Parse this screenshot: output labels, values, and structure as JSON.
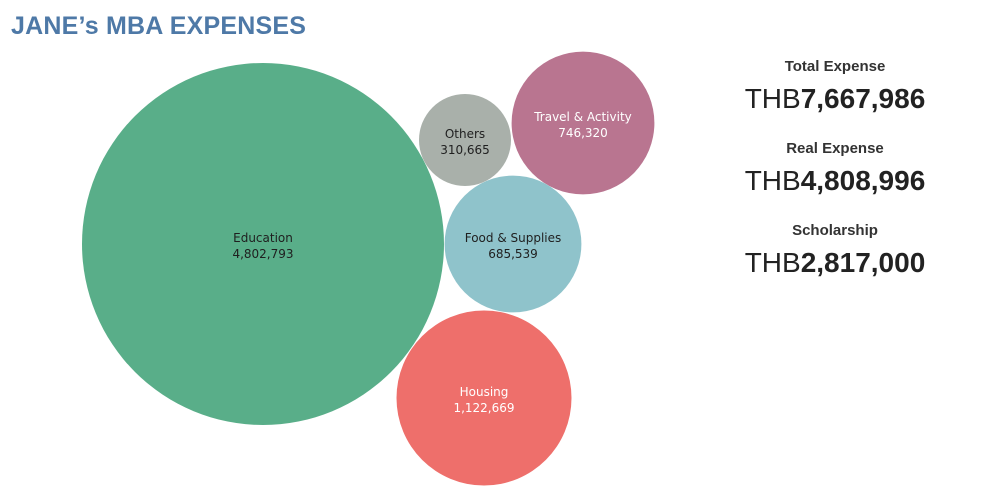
{
  "title": "JANE’s MBA EXPENSES",
  "chart_data": {
    "type": "bubble",
    "title": "JANE’s MBA EXPENSES",
    "bubbles": [
      {
        "label": "Education",
        "value": 4802793,
        "display": "4,802,793",
        "color": "#59ae89",
        "text_color": "#1f1f1f"
      },
      {
        "label": "Housing",
        "value": 1122669,
        "display": "1,122,669",
        "color": "#ee6f6b",
        "text_color": "#ffffff"
      },
      {
        "label": "Travel & Activity",
        "value": 746320,
        "display": "746,320",
        "color": "#b97590",
        "text_color": "#ffffff"
      },
      {
        "label": "Food & Supplies",
        "value": 685539,
        "display": "685,539",
        "color": "#8fc3cb",
        "text_color": "#1f1f1f"
      },
      {
        "label": "Others",
        "value": 310665,
        "display": "310,665",
        "color": "#a9b0aa",
        "text_color": "#1f1f1f"
      }
    ]
  },
  "kpis": [
    {
      "label": "Total Expense",
      "currency": "THB",
      "value": "7,667,986"
    },
    {
      "label": "Real Expense",
      "currency": "THB",
      "value": "4,808,996"
    },
    {
      "label": "Scholarship",
      "currency": "THB",
      "value": "2,817,000"
    }
  ]
}
